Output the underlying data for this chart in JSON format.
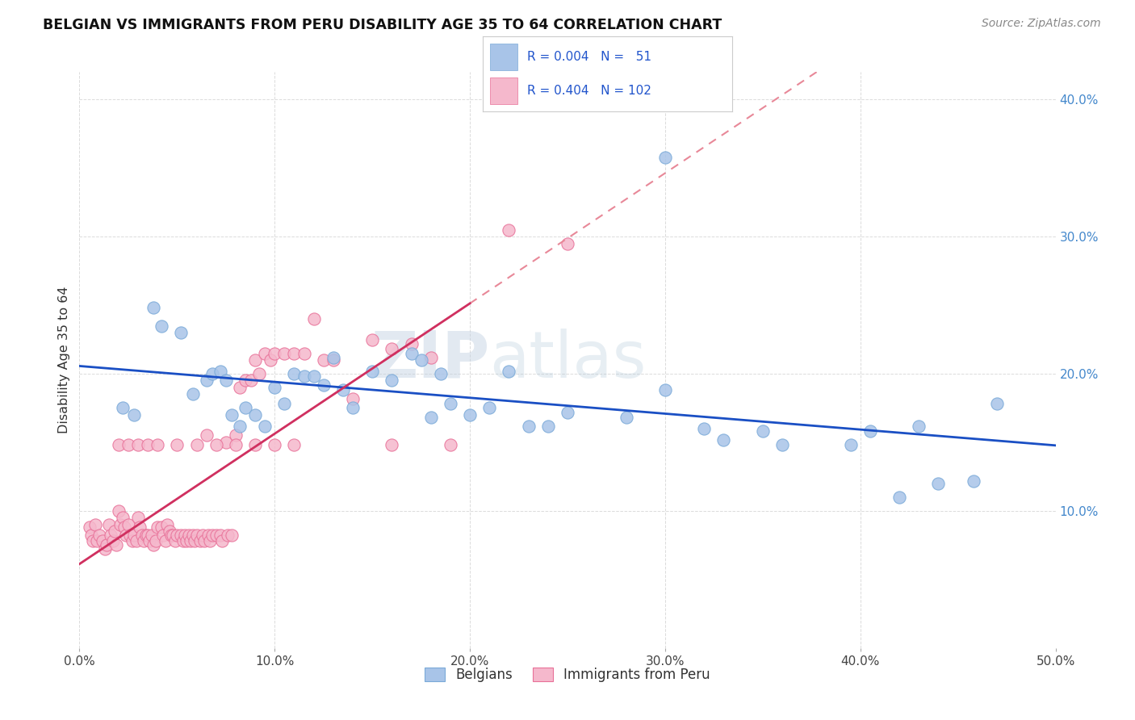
{
  "title": "BELGIAN VS IMMIGRANTS FROM PERU DISABILITY AGE 35 TO 64 CORRELATION CHART",
  "source": "Source: ZipAtlas.com",
  "ylabel": "Disability Age 35 to 64",
  "xlim": [
    0.0,
    0.5
  ],
  "ylim": [
    0.0,
    0.42
  ],
  "xticks": [
    0.0,
    0.1,
    0.2,
    0.3,
    0.4,
    0.5
  ],
  "xticklabels": [
    "0.0%",
    "10.0%",
    "20.0%",
    "30.0%",
    "40.0%",
    "50.0%"
  ],
  "yticks": [
    0.1,
    0.2,
    0.3,
    0.4
  ],
  "yticklabels": [
    "10.0%",
    "20.0%",
    "30.0%",
    "40.0%"
  ],
  "belgian_color": "#a8c4e8",
  "belgian_edge": "#7aaad8",
  "peru_color": "#f5b8cc",
  "peru_edge": "#e87098",
  "trend_belgian_color": "#1a4fc4",
  "trend_peru_solid_color": "#d03060",
  "trend_peru_dash_color": "#e88898",
  "watermark_zip": "ZIP",
  "watermark_atlas": "atlas",
  "background_color": "#ffffff",
  "belgians_label": "Belgians",
  "peru_label": "Immigrants from Peru",
  "legend_color": "#2255cc",
  "grid_color": "#d8d8d8",
  "belgians_x": [
    0.022,
    0.028,
    0.038,
    0.042,
    0.052,
    0.058,
    0.065,
    0.068,
    0.072,
    0.075,
    0.078,
    0.082,
    0.085,
    0.09,
    0.095,
    0.1,
    0.105,
    0.11,
    0.115,
    0.12,
    0.125,
    0.13,
    0.135,
    0.14,
    0.15,
    0.16,
    0.17,
    0.175,
    0.18,
    0.185,
    0.19,
    0.2,
    0.21,
    0.22,
    0.23,
    0.24,
    0.25,
    0.28,
    0.3,
    0.32,
    0.35,
    0.42,
    0.44,
    0.47,
    0.3,
    0.33,
    0.36,
    0.395,
    0.405,
    0.43,
    0.458
  ],
  "belgians_y": [
    0.175,
    0.17,
    0.248,
    0.235,
    0.23,
    0.185,
    0.195,
    0.2,
    0.202,
    0.195,
    0.17,
    0.162,
    0.175,
    0.17,
    0.162,
    0.19,
    0.178,
    0.2,
    0.198,
    0.198,
    0.192,
    0.212,
    0.188,
    0.175,
    0.202,
    0.195,
    0.215,
    0.21,
    0.168,
    0.2,
    0.178,
    0.17,
    0.175,
    0.202,
    0.162,
    0.162,
    0.172,
    0.168,
    0.188,
    0.16,
    0.158,
    0.11,
    0.12,
    0.178,
    0.358,
    0.152,
    0.148,
    0.148,
    0.158,
    0.162,
    0.122
  ],
  "peru_x": [
    0.005,
    0.006,
    0.007,
    0.008,
    0.009,
    0.01,
    0.012,
    0.013,
    0.014,
    0.015,
    0.016,
    0.017,
    0.018,
    0.019,
    0.02,
    0.021,
    0.022,
    0.023,
    0.024,
    0.025,
    0.026,
    0.027,
    0.028,
    0.029,
    0.03,
    0.031,
    0.032,
    0.033,
    0.034,
    0.035,
    0.036,
    0.037,
    0.038,
    0.039,
    0.04,
    0.042,
    0.043,
    0.044,
    0.045,
    0.046,
    0.047,
    0.048,
    0.049,
    0.05,
    0.052,
    0.053,
    0.054,
    0.055,
    0.056,
    0.057,
    0.058,
    0.059,
    0.06,
    0.062,
    0.063,
    0.064,
    0.065,
    0.066,
    0.067,
    0.068,
    0.07,
    0.072,
    0.073,
    0.075,
    0.076,
    0.078,
    0.08,
    0.082,
    0.085,
    0.088,
    0.09,
    0.092,
    0.095,
    0.098,
    0.1,
    0.105,
    0.11,
    0.115,
    0.12,
    0.125,
    0.13,
    0.14,
    0.15,
    0.16,
    0.17,
    0.18,
    0.02,
    0.025,
    0.03,
    0.035,
    0.04,
    0.05,
    0.06,
    0.07,
    0.08,
    0.09,
    0.1,
    0.11,
    0.16,
    0.19,
    0.22,
    0.25
  ],
  "peru_y": [
    0.088,
    0.082,
    0.078,
    0.09,
    0.078,
    0.082,
    0.078,
    0.072,
    0.075,
    0.09,
    0.082,
    0.078,
    0.085,
    0.075,
    0.1,
    0.09,
    0.095,
    0.088,
    0.082,
    0.09,
    0.082,
    0.078,
    0.082,
    0.078,
    0.095,
    0.088,
    0.082,
    0.078,
    0.082,
    0.082,
    0.078,
    0.082,
    0.075,
    0.078,
    0.088,
    0.088,
    0.082,
    0.078,
    0.09,
    0.085,
    0.082,
    0.082,
    0.078,
    0.082,
    0.082,
    0.078,
    0.082,
    0.078,
    0.082,
    0.078,
    0.082,
    0.078,
    0.082,
    0.078,
    0.082,
    0.078,
    0.155,
    0.082,
    0.078,
    0.082,
    0.082,
    0.082,
    0.078,
    0.15,
    0.082,
    0.082,
    0.155,
    0.19,
    0.195,
    0.195,
    0.21,
    0.2,
    0.215,
    0.21,
    0.215,
    0.215,
    0.215,
    0.215,
    0.24,
    0.21,
    0.21,
    0.182,
    0.225,
    0.218,
    0.222,
    0.212,
    0.148,
    0.148,
    0.148,
    0.148,
    0.148,
    0.148,
    0.148,
    0.148,
    0.148,
    0.148,
    0.148,
    0.148,
    0.148,
    0.148,
    0.305,
    0.295
  ]
}
